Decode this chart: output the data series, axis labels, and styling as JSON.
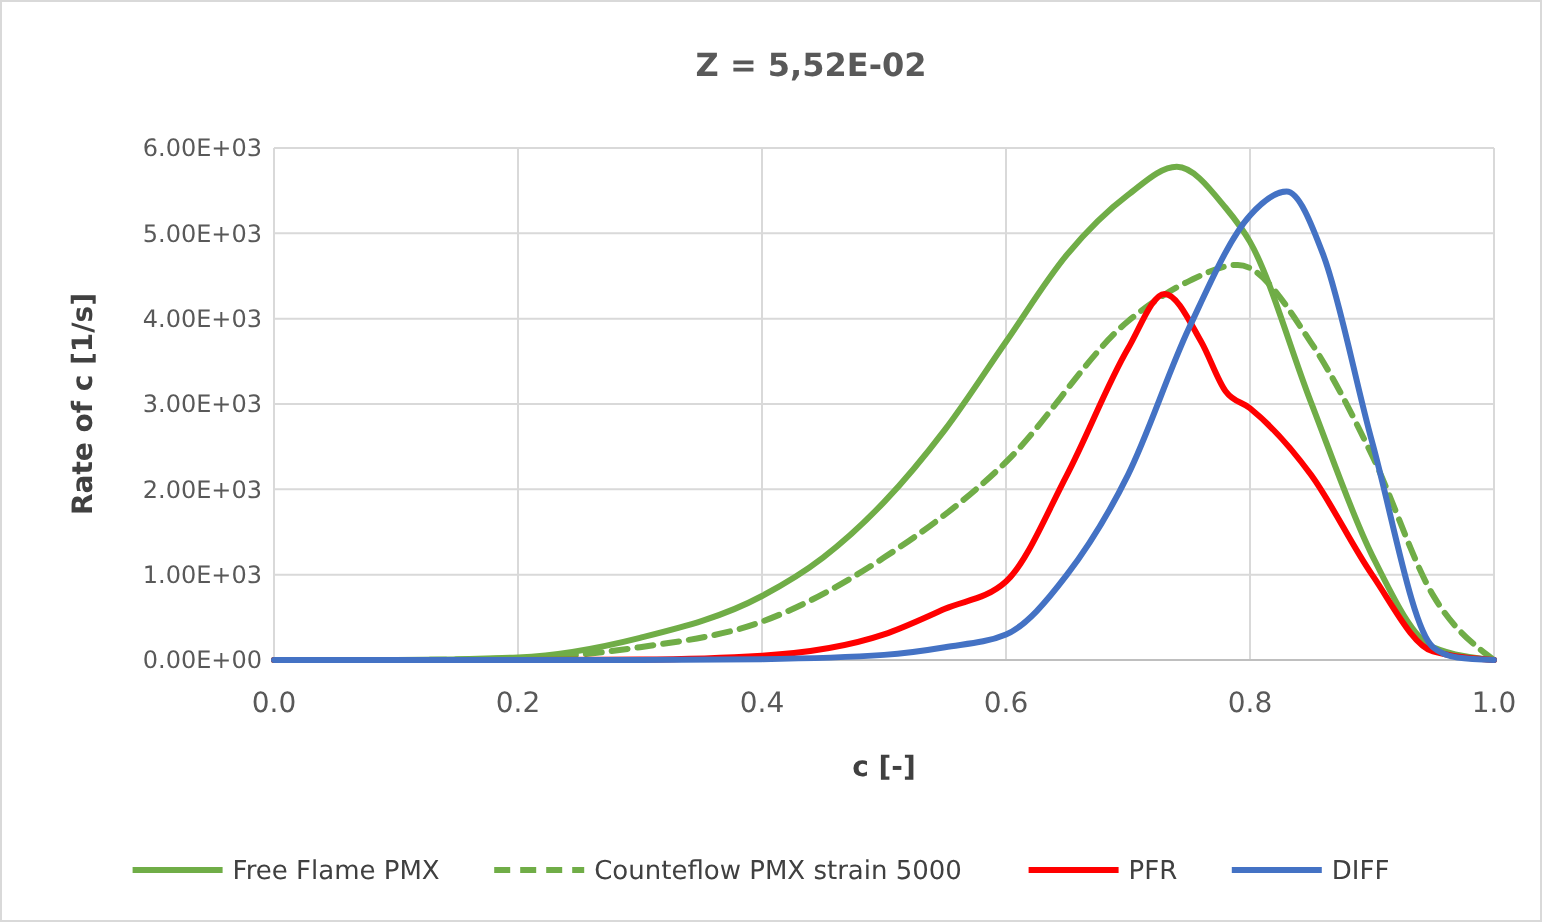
{
  "chart_data": {
    "type": "line",
    "title": "Z = 5,52E-02",
    "xlabel": "c [-]",
    "ylabel": "Rate of c [1/s]",
    "xlim": [
      0,
      1
    ],
    "xticks": [
      {
        "value": 0,
        "label": "0.0"
      },
      {
        "value": 0.2,
        "label": "0.2"
      },
      {
        "value": 0.4,
        "label": "0.4"
      },
      {
        "value": 0.6,
        "label": "0.6"
      },
      {
        "value": 0.8,
        "label": "0.8"
      },
      {
        "value": 1,
        "label": "1.0"
      }
    ],
    "ylim": [
      0,
      6000
    ],
    "yticks": [
      {
        "value": 0,
        "label": "0.00E+00"
      },
      {
        "value": 1000,
        "label": "1.00E+03"
      },
      {
        "value": 2000,
        "label": "2.00E+03"
      },
      {
        "value": 3000,
        "label": "3.00E+03"
      },
      {
        "value": 4000,
        "label": "4.00E+03"
      },
      {
        "value": 5000,
        "label": "5.00E+03"
      },
      {
        "value": 6000,
        "label": "6.00E+03"
      }
    ],
    "grid": true,
    "legend": "bottom",
    "marker": "none",
    "series": [
      {
        "name": "Free Flame PMX",
        "color": "#70ad47",
        "line_style": "solid",
        "x": [
          0,
          0.1,
          0.2,
          0.3,
          0.4,
          0.45,
          0.5,
          0.55,
          0.6,
          0.65,
          0.7,
          0.74,
          0.78,
          0.8,
          0.85,
          0.9,
          0.95,
          1.0
        ],
        "values": [
          0,
          0,
          30,
          260,
          750,
          1200,
          1850,
          2700,
          3730,
          4750,
          5450,
          5780,
          5300,
          4900,
          3020,
          1230,
          150,
          0
        ]
      },
      {
        "name": "Counteflow PMX strain 5000",
        "color": "#70ad47",
        "line_style": "dashed",
        "x": [
          0,
          0.1,
          0.2,
          0.3,
          0.4,
          0.5,
          0.6,
          0.7,
          0.75,
          0.79,
          0.85,
          0.9,
          0.95,
          1.0
        ],
        "values": [
          0,
          0,
          20,
          150,
          450,
          1200,
          2320,
          3970,
          4440,
          4630,
          3720,
          2400,
          760,
          0
        ]
      },
      {
        "name": "PFR",
        "color": "#ff0000",
        "line_style": "solid",
        "x": [
          0,
          0.2,
          0.3,
          0.4,
          0.5,
          0.55,
          0.6,
          0.65,
          0.7,
          0.73,
          0.76,
          0.78,
          0.8,
          0.85,
          0.9,
          0.95,
          1.0
        ],
        "values": [
          0,
          0,
          5,
          50,
          300,
          600,
          920,
          2170,
          3650,
          4290,
          3730,
          3150,
          2950,
          2170,
          1000,
          100,
          0
        ]
      },
      {
        "name": "DIFF",
        "color": "#4472c4",
        "line_style": "solid",
        "x": [
          0,
          0.3,
          0.4,
          0.5,
          0.55,
          0.6,
          0.65,
          0.7,
          0.75,
          0.8,
          0.83,
          0.86,
          0.9,
          0.95,
          0.97,
          1.0
        ],
        "values": [
          0,
          0,
          10,
          60,
          150,
          300,
          1000,
          2170,
          3890,
          5210,
          5490,
          4750,
          2560,
          150,
          30,
          0
        ]
      }
    ]
  }
}
